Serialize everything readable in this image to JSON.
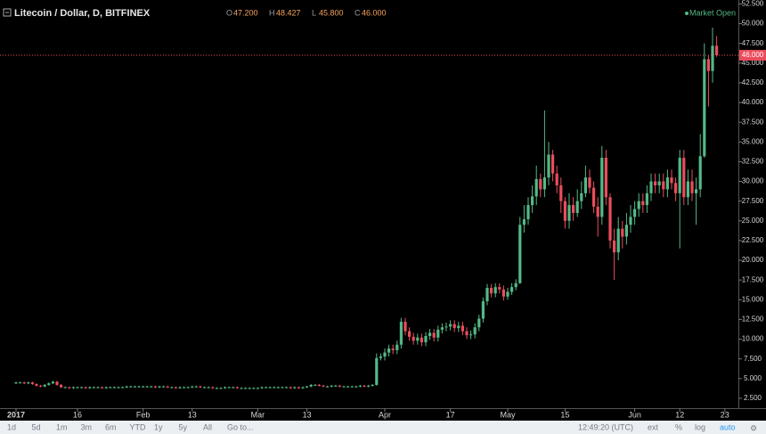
{
  "chart_data": {
    "type": "candlestick",
    "title": "Litecoin / Dollar, D, BITFINEX",
    "legend_ohlc": [
      {
        "key": "O",
        "label": "47.200"
      },
      {
        "key": "H",
        "label": "48.427"
      },
      {
        "key": "L",
        "label": "45.800"
      },
      {
        "key": "C",
        "label": "46.000"
      }
    ],
    "status": "Market Open",
    "price_label": "46.000",
    "up_color": "#53b987",
    "down_color": "#eb4d5c",
    "x": [
      "2017-01-01",
      "2017-01-02",
      "2017-01-03",
      "2017-01-04",
      "2017-01-05",
      "2017-01-06",
      "2017-01-07",
      "2017-01-08",
      "2017-01-09",
      "2017-01-10",
      "2017-01-11",
      "2017-01-12",
      "2017-01-13",
      "2017-01-14",
      "2017-01-15",
      "2017-01-16",
      "2017-01-17",
      "2017-01-18",
      "2017-01-19",
      "2017-01-20",
      "2017-01-21",
      "2017-01-22",
      "2017-01-23",
      "2017-01-24",
      "2017-01-25",
      "2017-01-26",
      "2017-01-27",
      "2017-01-28",
      "2017-01-29",
      "2017-01-30",
      "2017-01-31",
      "2017-02-01",
      "2017-02-02",
      "2017-02-03",
      "2017-02-04",
      "2017-02-05",
      "2017-02-06",
      "2017-02-07",
      "2017-02-08",
      "2017-02-09",
      "2017-02-10",
      "2017-02-11",
      "2017-02-12",
      "2017-02-13",
      "2017-02-14",
      "2017-02-15",
      "2017-02-16",
      "2017-02-17",
      "2017-02-18",
      "2017-02-19",
      "2017-02-20",
      "2017-02-21",
      "2017-02-22",
      "2017-02-23",
      "2017-02-24",
      "2017-02-25",
      "2017-02-26",
      "2017-02-27",
      "2017-02-28",
      "2017-03-01",
      "2017-03-02",
      "2017-03-03",
      "2017-03-04",
      "2017-03-05",
      "2017-03-06",
      "2017-03-07",
      "2017-03-08",
      "2017-03-09",
      "2017-03-10",
      "2017-03-11",
      "2017-03-12",
      "2017-03-13",
      "2017-03-14",
      "2017-03-15",
      "2017-03-16",
      "2017-03-17",
      "2017-03-18",
      "2017-03-19",
      "2017-03-20",
      "2017-03-21",
      "2017-03-22",
      "2017-03-23",
      "2017-03-24",
      "2017-03-25",
      "2017-03-26",
      "2017-03-27",
      "2017-03-28",
      "2017-03-29",
      "2017-03-30",
      "2017-03-31",
      "2017-04-01",
      "2017-04-02",
      "2017-04-03",
      "2017-04-04",
      "2017-04-05",
      "2017-04-06",
      "2017-04-07",
      "2017-04-08",
      "2017-04-09",
      "2017-04-10",
      "2017-04-11",
      "2017-04-12",
      "2017-04-13",
      "2017-04-14",
      "2017-04-15",
      "2017-04-16",
      "2017-04-17",
      "2017-04-18",
      "2017-04-19",
      "2017-04-20",
      "2017-04-21",
      "2017-04-22",
      "2017-04-23",
      "2017-04-24",
      "2017-04-25",
      "2017-04-26",
      "2017-04-27",
      "2017-04-28",
      "2017-04-29",
      "2017-04-30",
      "2017-05-01",
      "2017-05-02",
      "2017-05-03",
      "2017-05-04",
      "2017-05-05",
      "2017-05-06",
      "2017-05-07",
      "2017-05-08",
      "2017-05-09",
      "2017-05-10",
      "2017-05-11",
      "2017-05-12",
      "2017-05-13",
      "2017-05-14",
      "2017-05-15",
      "2017-05-16",
      "2017-05-17",
      "2017-05-18",
      "2017-05-19",
      "2017-05-20",
      "2017-05-21",
      "2017-05-22",
      "2017-05-23",
      "2017-05-24",
      "2017-05-25",
      "2017-05-26",
      "2017-05-27",
      "2017-05-28",
      "2017-05-29",
      "2017-05-30",
      "2017-05-31",
      "2017-06-01",
      "2017-06-02",
      "2017-06-03",
      "2017-06-04",
      "2017-06-05",
      "2017-06-06",
      "2017-06-07",
      "2017-06-08",
      "2017-06-09",
      "2017-06-10",
      "2017-06-11",
      "2017-06-12",
      "2017-06-13",
      "2017-06-14",
      "2017-06-15",
      "2017-06-16",
      "2017-06-17",
      "2017-06-18",
      "2017-06-19",
      "2017-06-20",
      "2017-06-21"
    ],
    "opens": [
      4.4,
      4.5,
      4.5,
      4.4,
      4.5,
      4.3,
      4.1,
      4.0,
      4.2,
      4.4,
      4.6,
      4.2,
      3.9,
      3.9,
      3.8,
      3.9,
      3.9,
      3.9,
      3.8,
      3.9,
      3.9,
      3.9,
      3.8,
      3.9,
      3.9,
      3.9,
      3.9,
      3.9,
      4.0,
      4.0,
      4.0,
      4.0,
      4.0,
      4.0,
      4.0,
      3.9,
      4.0,
      4.0,
      3.9,
      3.9,
      3.8,
      3.9,
      3.9,
      3.9,
      4.0,
      4.0,
      3.9,
      3.9,
      3.9,
      3.8,
      3.8,
      3.8,
      3.9,
      3.9,
      3.9,
      3.8,
      3.8,
      3.8,
      3.8,
      3.8,
      3.8,
      3.9,
      3.9,
      3.9,
      3.9,
      3.9,
      3.9,
      3.9,
      3.8,
      3.9,
      3.8,
      3.9,
      4.0,
      4.2,
      4.2,
      4.1,
      4.0,
      4.0,
      4.1,
      4.1,
      4.0,
      4.0,
      4.0,
      4.0,
      4.0,
      4.1,
      4.0,
      4.1,
      4.2,
      7.6,
      7.8,
      8.3,
      8.8,
      8.6,
      9.3,
      12.2,
      11.0,
      10.3,
      9.8,
      10.2,
      9.6,
      10.4,
      10.8,
      10.2,
      11.2,
      11.5,
      11.6,
      11.9,
      11.4,
      11.7,
      11.0,
      10.5,
      10.6,
      11.5,
      12.6,
      14.8,
      16.5,
      15.8,
      16.6,
      16.3,
      15.4,
      16.0,
      16.6,
      17.1,
      24.5,
      25.2,
      27.0,
      28.1,
      30.3,
      29.0,
      30.5,
      33.4,
      31.0,
      29.5,
      27.5,
      25.0,
      27.0,
      26.0,
      27.5,
      28.5,
      30.5,
      29.2,
      26.8,
      25.5,
      33.0,
      28.0,
      22.5,
      21.0,
      24.0,
      23.0,
      24.5,
      25.5,
      26.5,
      27.5,
      27.0,
      28.5,
      30.0,
      29.5,
      30.0,
      29.0,
      30.5,
      29.8,
      28.5,
      33.0,
      28.0,
      30.0,
      28.5,
      29.0,
      33.2,
      45.5,
      44.0,
      47.2
    ],
    "highs": [
      4.6,
      4.6,
      4.6,
      4.6,
      4.6,
      4.4,
      4.2,
      4.3,
      4.5,
      4.7,
      4.7,
      4.3,
      4.0,
      4.0,
      4.0,
      4.0,
      4.0,
      4.0,
      4.0,
      4.0,
      4.0,
      4.0,
      4.0,
      4.0,
      4.0,
      4.0,
      4.0,
      4.1,
      4.1,
      4.1,
      4.1,
      4.1,
      4.1,
      4.1,
      4.1,
      4.1,
      4.1,
      4.1,
      4.0,
      4.0,
      4.0,
      4.0,
      4.0,
      4.1,
      4.1,
      4.1,
      4.0,
      4.0,
      4.0,
      3.9,
      3.9,
      4.0,
      4.0,
      4.0,
      4.0,
      3.9,
      3.9,
      3.9,
      3.9,
      3.9,
      4.0,
      4.0,
      4.0,
      4.0,
      4.0,
      4.0,
      4.0,
      4.0,
      4.0,
      4.0,
      4.0,
      4.1,
      4.3,
      4.3,
      4.3,
      4.2,
      4.1,
      4.2,
      4.2,
      4.2,
      4.1,
      4.1,
      4.1,
      4.1,
      4.2,
      4.2,
      4.2,
      4.3,
      8.2,
      8.2,
      8.8,
      9.3,
      9.3,
      9.8,
      12.7,
      12.7,
      11.5,
      10.8,
      10.7,
      10.7,
      10.9,
      11.3,
      11.3,
      11.7,
      12.0,
      12.1,
      12.4,
      12.4,
      12.2,
      12.2,
      11.5,
      11.1,
      12.0,
      13.1,
      15.3,
      17.0,
      17.0,
      17.1,
      17.1,
      16.8,
      16.5,
      17.1,
      17.6,
      25.5,
      27.0,
      28.0,
      29.5,
      32.0,
      31.0,
      39.0,
      35.0,
      34.0,
      32.0,
      30.5,
      28.0,
      28.5,
      28.0,
      29.0,
      30.0,
      32.0,
      31.5,
      30.0,
      28.0,
      34.5,
      34.0,
      28.5,
      24.0,
      25.5,
      25.0,
      26.0,
      27.0,
      27.5,
      28.5,
      28.5,
      29.5,
      31.0,
      31.0,
      31.0,
      31.0,
      31.5,
      31.5,
      30.5,
      34.0,
      34.0,
      31.5,
      31.5,
      30.5,
      36.0,
      47.5,
      46.0,
      49.5,
      48.427
    ],
    "lows": [
      4.3,
      4.4,
      4.3,
      4.3,
      4.2,
      4.0,
      3.9,
      3.9,
      4.1,
      4.3,
      4.1,
      3.8,
      3.8,
      3.7,
      3.7,
      3.8,
      3.8,
      3.7,
      3.7,
      3.8,
      3.8,
      3.7,
      3.7,
      3.8,
      3.8,
      3.8,
      3.8,
      3.8,
      3.9,
      3.9,
      3.9,
      3.9,
      3.9,
      3.9,
      3.8,
      3.8,
      3.9,
      3.8,
      3.8,
      3.7,
      3.7,
      3.8,
      3.8,
      3.8,
      3.9,
      3.8,
      3.8,
      3.8,
      3.7,
      3.7,
      3.7,
      3.7,
      3.8,
      3.8,
      3.7,
      3.7,
      3.7,
      3.7,
      3.7,
      3.7,
      3.7,
      3.8,
      3.8,
      3.8,
      3.8,
      3.8,
      3.8,
      3.7,
      3.7,
      3.7,
      3.7,
      3.8,
      3.9,
      4.1,
      4.0,
      3.9,
      3.9,
      3.9,
      4.0,
      3.9,
      3.9,
      3.9,
      3.9,
      3.9,
      3.9,
      3.9,
      3.9,
      4.0,
      4.1,
      7.3,
      7.3,
      7.8,
      8.1,
      8.1,
      8.8,
      10.5,
      9.8,
      9.3,
      9.3,
      9.1,
      9.1,
      9.9,
      9.7,
      9.7,
      10.7,
      11.0,
      11.1,
      10.9,
      10.9,
      10.5,
      10.0,
      10.0,
      10.1,
      11.0,
      12.1,
      14.3,
      15.3,
      15.3,
      15.8,
      14.9,
      15.0,
      15.6,
      16.2,
      17.0,
      23.5,
      24.5,
      26.0,
      27.0,
      28.0,
      28.0,
      29.5,
      30.0,
      28.5,
      26.0,
      24.0,
      24.0,
      25.0,
      25.5,
      26.5,
      28.0,
      28.5,
      26.0,
      23.0,
      24.5,
      27.0,
      21.5,
      17.5,
      20.0,
      21.5,
      22.0,
      23.5,
      24.5,
      25.5,
      26.0,
      26.0,
      27.5,
      28.5,
      28.5,
      28.0,
      28.0,
      29.0,
      27.5,
      21.5,
      27.0,
      27.0,
      27.5,
      24.5,
      28.0,
      33.0,
      39.5,
      42.5,
      45.8
    ],
    "closes": [
      4.5,
      4.5,
      4.4,
      4.5,
      4.3,
      4.1,
      4.0,
      4.2,
      4.4,
      4.6,
      4.2,
      3.9,
      3.9,
      3.8,
      3.9,
      3.9,
      3.9,
      3.8,
      3.9,
      3.9,
      3.9,
      3.8,
      3.9,
      3.9,
      3.9,
      3.9,
      3.9,
      4.0,
      4.0,
      4.0,
      4.0,
      4.0,
      4.0,
      4.0,
      3.9,
      4.0,
      4.0,
      3.9,
      3.9,
      3.8,
      3.9,
      3.9,
      3.9,
      4.0,
      4.0,
      3.9,
      3.9,
      3.9,
      3.8,
      3.8,
      3.8,
      3.9,
      3.9,
      3.9,
      3.8,
      3.8,
      3.8,
      3.8,
      3.8,
      3.8,
      3.9,
      3.9,
      3.9,
      3.9,
      3.9,
      3.9,
      3.9,
      3.8,
      3.9,
      3.8,
      3.9,
      4.0,
      4.2,
      4.2,
      4.1,
      4.0,
      4.0,
      4.1,
      4.1,
      4.0,
      4.0,
      4.0,
      4.0,
      4.0,
      4.1,
      4.0,
      4.1,
      4.2,
      7.6,
      7.8,
      8.3,
      8.8,
      8.6,
      9.3,
      12.2,
      11.0,
      10.3,
      9.8,
      10.2,
      9.6,
      10.4,
      10.8,
      10.2,
      11.2,
      11.5,
      11.6,
      11.9,
      11.4,
      11.7,
      11.0,
      10.5,
      10.6,
      11.5,
      12.6,
      14.8,
      16.5,
      15.8,
      16.6,
      16.3,
      15.4,
      16.0,
      16.6,
      17.1,
      24.5,
      25.2,
      27.0,
      28.1,
      30.3,
      29.0,
      30.5,
      33.4,
      31.0,
      29.5,
      27.5,
      25.0,
      27.0,
      26.0,
      27.5,
      28.5,
      30.5,
      29.2,
      26.8,
      25.5,
      33.0,
      28.0,
      22.5,
      21.0,
      24.0,
      23.0,
      24.5,
      25.5,
      26.5,
      27.5,
      27.0,
      28.5,
      30.0,
      29.5,
      30.0,
      29.0,
      30.5,
      29.8,
      28.5,
      33.0,
      28.0,
      30.0,
      28.5,
      29.0,
      33.2,
      45.5,
      44.0,
      47.2,
      46.0
    ],
    "ylim": [
      1.25,
      53.0
    ],
    "yticks": [
      {
        "value": 2.5,
        "label": "2.500"
      },
      {
        "value": 5,
        "label": "5.000"
      },
      {
        "value": 7.5,
        "label": "7.500"
      },
      {
        "value": 10,
        "label": "10.000"
      },
      {
        "value": 12.5,
        "label": "12.500"
      },
      {
        "value": 15,
        "label": "15.000"
      },
      {
        "value": 17.5,
        "label": "17.500"
      },
      {
        "value": 20,
        "label": "20.000"
      },
      {
        "value": 22.5,
        "label": "22.500"
      },
      {
        "value": 25,
        "label": "25.000"
      },
      {
        "value": 27.5,
        "label": "27.500"
      },
      {
        "value": 30,
        "label": "30.000"
      },
      {
        "value": 32.5,
        "label": "32.500"
      },
      {
        "value": 35,
        "label": "35.000"
      },
      {
        "value": 37.5,
        "label": "37.500"
      },
      {
        "value": 40,
        "label": "40.000"
      },
      {
        "value": 42.5,
        "label": "42.500"
      },
      {
        "value": 45,
        "label": "45.000"
      },
      {
        "value": 47.5,
        "label": "47.500"
      },
      {
        "value": 50,
        "label": "50.000"
      },
      {
        "value": 52.5,
        "label": "52.500"
      }
    ],
    "xticks": [
      {
        "value": "2017-01-01",
        "label": "2017"
      },
      {
        "value": "2017-01-16",
        "label": "16"
      },
      {
        "value": "2017-02-01",
        "label": "Feb"
      },
      {
        "value": "2017-02-13",
        "label": "13"
      },
      {
        "value": "2017-03-01",
        "label": "Mar"
      },
      {
        "value": "2017-03-13",
        "label": "13"
      },
      {
        "value": "2017-04-01",
        "label": "Apr"
      },
      {
        "value": "2017-04-17",
        "label": "17"
      },
      {
        "value": "2017-05-01",
        "label": "May"
      },
      {
        "value": "2017-05-15",
        "label": "15"
      },
      {
        "value": "2017-06-01",
        "label": "Jun"
      },
      {
        "value": "2017-06-12",
        "label": "12"
      },
      {
        "value": "2017-06-23",
        "label": "23"
      }
    ]
  },
  "toolbar": {
    "ranges": [
      "1d",
      "5d",
      "1m",
      "3m",
      "6m",
      "YTD",
      "1y",
      "5y",
      "All"
    ],
    "goto": "Go to...",
    "clock": "12:49:20 (UTC)",
    "options": [
      "ext",
      "%",
      "log",
      "auto"
    ]
  }
}
